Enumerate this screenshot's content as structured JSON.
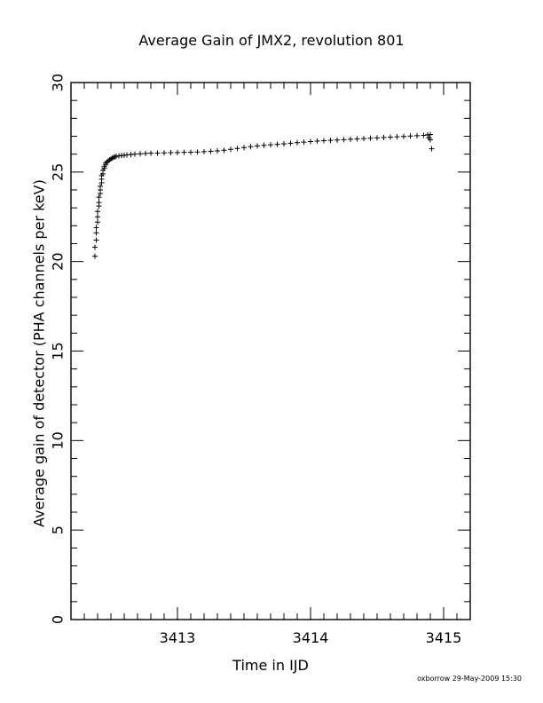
{
  "chart_data": {
    "type": "scatter",
    "title": "Average Gain of JMX2, revolution 801",
    "xlabel": "Time in IJD",
    "ylabel": "Average gain of detector (PHA channels per keV)",
    "xlim": [
      3412.2,
      3415.2
    ],
    "ylim": [
      0,
      30
    ],
    "xticks": [
      3413,
      3414,
      3415
    ],
    "yticks": [
      0,
      5,
      10,
      15,
      20,
      25,
      30
    ],
    "marker": "+",
    "marker_color": "#000000",
    "grid": false,
    "series": [
      {
        "x": [
          3412.38,
          3412.38,
          3412.39,
          3412.39,
          3412.39,
          3412.4,
          3412.4,
          3412.4,
          3412.41,
          3412.41,
          3412.41,
          3412.42,
          3412.42,
          3412.42,
          3412.43,
          3412.43,
          3412.43,
          3412.44,
          3412.44,
          3412.45,
          3412.45,
          3412.46,
          3412.46,
          3412.47,
          3412.48,
          3412.49,
          3412.5,
          3412.51,
          3412.52,
          3412.53,
          3412.54,
          3412.56,
          3412.58,
          3412.6,
          3412.62,
          3412.65,
          3412.68,
          3412.72,
          3412.76,
          3412.8,
          3412.85,
          3412.9,
          3412.95,
          3413.0,
          3413.05,
          3413.1,
          3413.15,
          3413.2,
          3413.25,
          3413.3,
          3413.35,
          3413.4,
          3413.45,
          3413.5,
          3413.55,
          3413.6,
          3413.65,
          3413.7,
          3413.75,
          3413.8,
          3413.85,
          3413.9,
          3413.95,
          3414.0,
          3414.05,
          3414.1,
          3414.15,
          3414.2,
          3414.25,
          3414.3,
          3414.35,
          3414.4,
          3414.45,
          3414.5,
          3414.55,
          3414.6,
          3414.65,
          3414.7,
          3414.75,
          3414.8,
          3414.85,
          3414.88,
          3414.89,
          3414.9,
          3414.9,
          3414.91
        ],
        "y": [
          20.3,
          20.8,
          21.2,
          21.6,
          21.9,
          22.2,
          22.5,
          22.8,
          23.1,
          23.3,
          23.6,
          23.8,
          24.0,
          24.2,
          24.4,
          24.6,
          24.8,
          24.9,
          25.1,
          25.2,
          25.3,
          25.4,
          25.5,
          25.55,
          25.62,
          25.68,
          25.73,
          25.78,
          25.82,
          25.85,
          25.88,
          25.9,
          25.92,
          25.94,
          25.96,
          25.98,
          26.0,
          26.02,
          26.04,
          26.05,
          26.06,
          26.07,
          26.08,
          26.09,
          26.1,
          26.11,
          26.12,
          26.14,
          26.16,
          26.18,
          26.22,
          26.27,
          26.32,
          26.37,
          26.42,
          26.46,
          26.49,
          26.52,
          26.55,
          26.58,
          26.61,
          26.64,
          26.67,
          26.7,
          26.73,
          26.75,
          26.77,
          26.79,
          26.81,
          26.83,
          26.85,
          26.87,
          26.89,
          26.91,
          26.93,
          26.95,
          26.97,
          26.99,
          27.01,
          27.03,
          27.05,
          27.08,
          26.9,
          27.1,
          26.8,
          26.3
        ]
      }
    ]
  },
  "footer": "oxborrow 29-May-2009 15:30"
}
